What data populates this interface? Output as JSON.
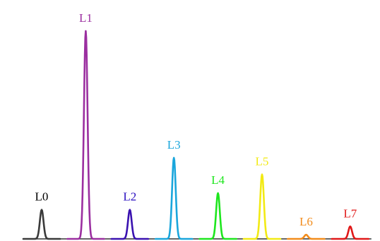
{
  "chart_data": {
    "type": "line",
    "title": "",
    "xlabel": "",
    "ylabel": "",
    "grid": false,
    "legend": "none",
    "ylim": [
      0,
      1
    ],
    "series": [
      {
        "name": "L0",
        "center": 0,
        "peak": 0.14,
        "color": "#3a3a3a",
        "label_color": "#000000"
      },
      {
        "name": "L1",
        "center": 1,
        "peak": 1.0,
        "color": "#9b2fa0",
        "label_color": "#9b2fa0"
      },
      {
        "name": "L2",
        "center": 2,
        "peak": 0.14,
        "color": "#3a12b0",
        "label_color": "#2a0fc0"
      },
      {
        "name": "L3",
        "center": 3,
        "peak": 0.39,
        "color": "#1aa6dc",
        "label_color": "#1aa6dc"
      },
      {
        "name": "L4",
        "center": 4,
        "peak": 0.22,
        "color": "#1ee61e",
        "label_color": "#1ee61e"
      },
      {
        "name": "L5",
        "center": 5,
        "peak": 0.31,
        "color": "#f2ea14",
        "label_color": "#f2ea14"
      },
      {
        "name": "L6",
        "center": 6,
        "peak": 0.02,
        "color": "#f28c1c",
        "label_color": "#f28c1c"
      },
      {
        "name": "L7",
        "center": 7,
        "peak": 0.06,
        "color": "#e01818",
        "label_color": "#e01818"
      }
    ]
  }
}
